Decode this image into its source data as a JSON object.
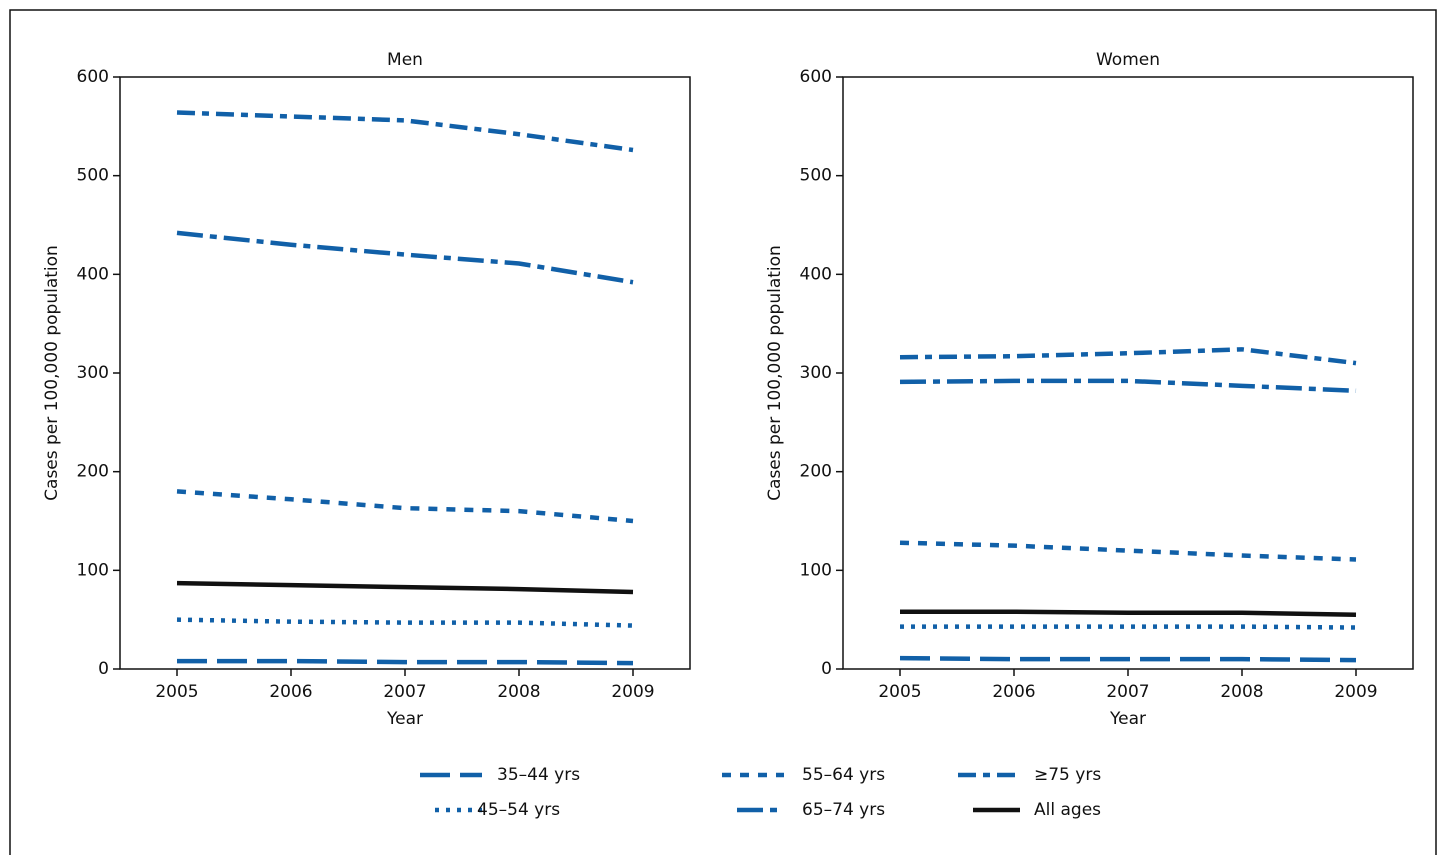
{
  "chart_data": [
    {
      "type": "line",
      "title": "Men",
      "xlabel": "Year",
      "ylabel": "Cases per 100,000 population",
      "x": [
        2005,
        2006,
        2007,
        2008,
        2009
      ],
      "xlim": [
        2004.5,
        2009.5
      ],
      "xticks": [
        2005,
        2006,
        2007,
        2008,
        2009
      ],
      "ylim": [
        0,
        600
      ],
      "yticks": [
        0,
        100,
        200,
        300,
        400,
        500,
        600
      ],
      "legend": "bottom",
      "series": [
        {
          "name": "35–44 yrs",
          "color": "#1160a8",
          "dash": "long-dash",
          "values": [
            8,
            8,
            7,
            7,
            6
          ]
        },
        {
          "name": "45–54 yrs",
          "color": "#1160a8",
          "dash": "dot",
          "values": [
            50,
            48,
            47,
            47,
            44
          ]
        },
        {
          "name": "55–64 yrs",
          "color": "#1160a8",
          "dash": "dash",
          "values": [
            180,
            172,
            163,
            160,
            150
          ]
        },
        {
          "name": "65–74 yrs",
          "color": "#1160a8",
          "dash": "dash-dot",
          "values": [
            442,
            430,
            420,
            411,
            392
          ]
        },
        {
          "name": "≥75 yrs",
          "color": "#1160a8",
          "dash": "dash-dot-dot",
          "values": [
            564,
            560,
            556,
            542,
            526
          ]
        },
        {
          "name": "All ages",
          "color": "#111111",
          "dash": "solid",
          "values": [
            87,
            85,
            83,
            81,
            78
          ]
        }
      ]
    },
    {
      "type": "line",
      "title": "Women",
      "xlabel": "Year",
      "ylabel": "Cases per 100,000 population",
      "x": [
        2005,
        2006,
        2007,
        2008,
        2009
      ],
      "xlim": [
        2004.5,
        2009.5
      ],
      "xticks": [
        2005,
        2006,
        2007,
        2008,
        2009
      ],
      "ylim": [
        0,
        600
      ],
      "yticks": [
        0,
        100,
        200,
        300,
        400,
        500,
        600
      ],
      "series": [
        {
          "name": "35–44 yrs",
          "color": "#1160a8",
          "dash": "long-dash",
          "values": [
            11,
            10,
            10,
            10,
            9
          ]
        },
        {
          "name": "45–54 yrs",
          "color": "#1160a8",
          "dash": "dot",
          "values": [
            43,
            43,
            43,
            43,
            42
          ]
        },
        {
          "name": "55–64 yrs",
          "color": "#1160a8",
          "dash": "dash",
          "values": [
            128,
            125,
            120,
            115,
            111
          ]
        },
        {
          "name": "65–74 yrs",
          "color": "#1160a8",
          "dash": "dash-dot",
          "values": [
            291,
            292,
            292,
            287,
            282
          ]
        },
        {
          "name": "≥75 yrs",
          "color": "#1160a8",
          "dash": "dash-dot-dot",
          "values": [
            316,
            317,
            320,
            324,
            310
          ]
        },
        {
          "name": "All ages",
          "color": "#111111",
          "dash": "solid",
          "values": [
            58,
            58,
            57,
            57,
            55
          ]
        }
      ]
    }
  ]
}
